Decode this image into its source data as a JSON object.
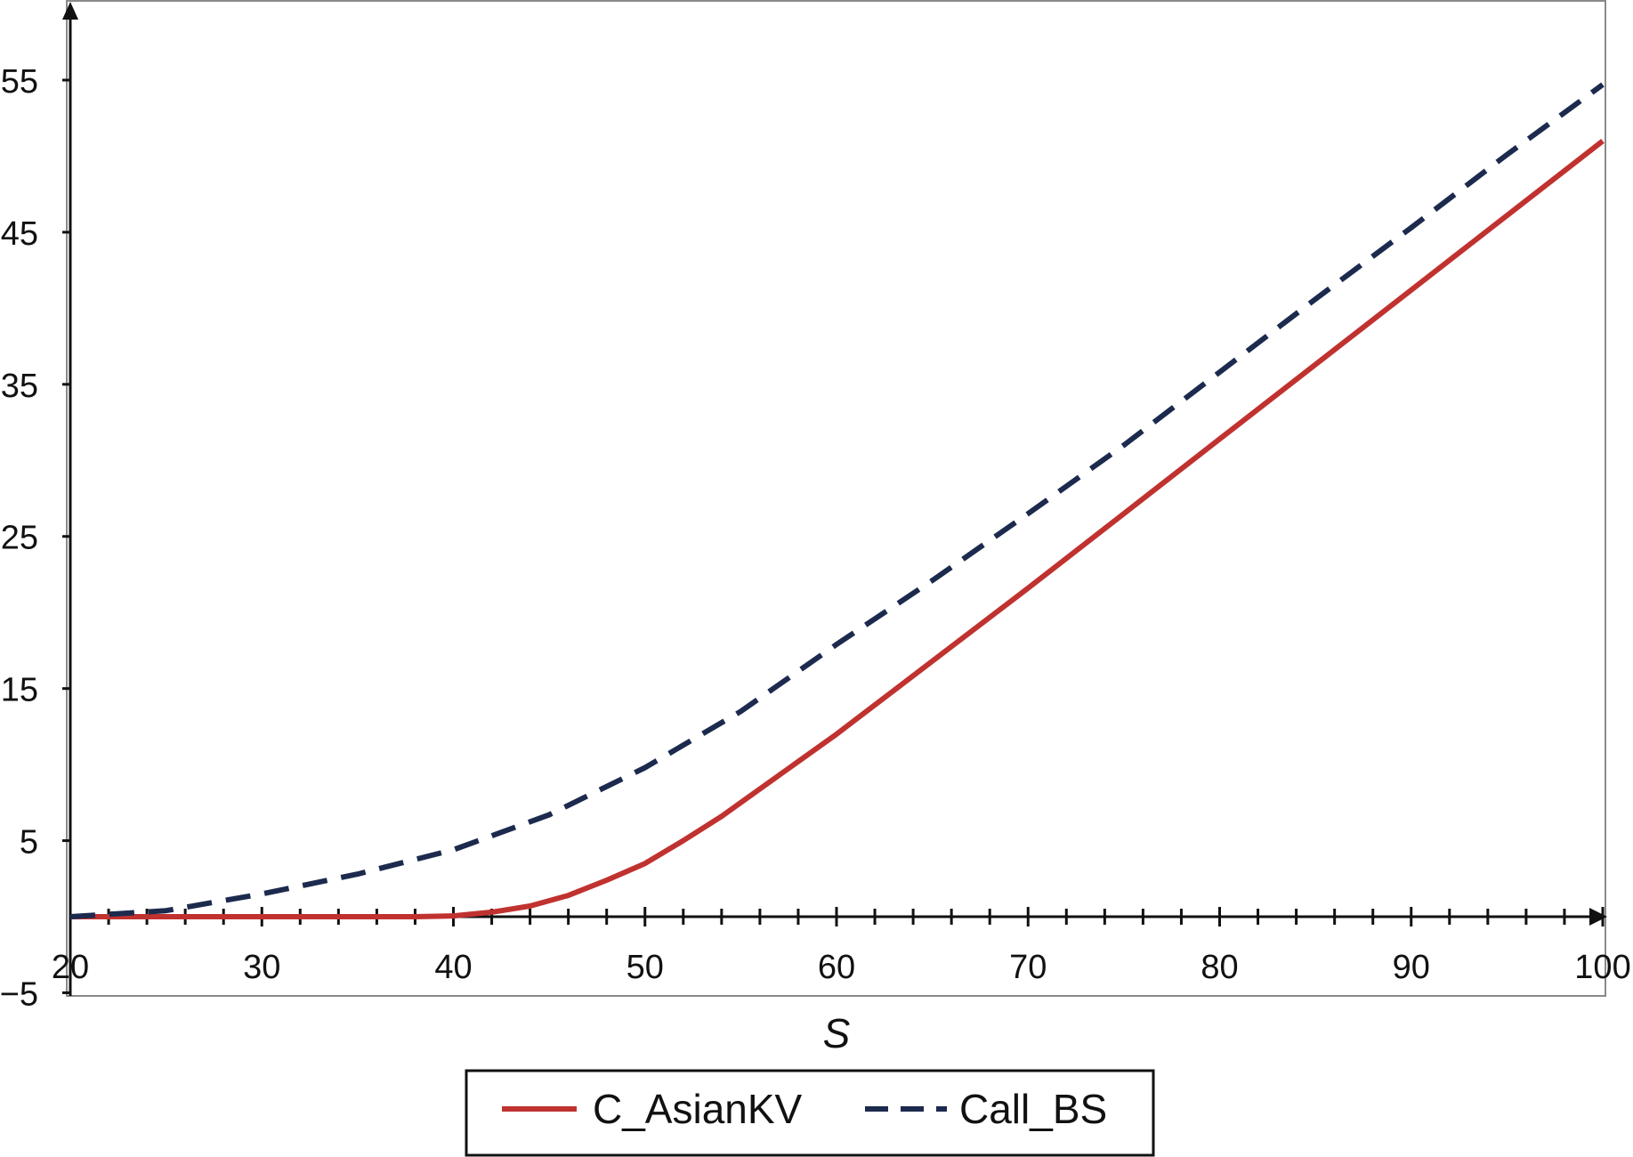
{
  "chart_data": {
    "type": "line",
    "xlabel": "S",
    "ylabel": "",
    "xlim": [
      20,
      100
    ],
    "ylim": [
      -5,
      60
    ],
    "x_major_ticks": [
      20,
      30,
      40,
      50,
      60,
      70,
      80,
      90,
      100
    ],
    "x_major_tick_labels": [
      "20",
      "30",
      "40",
      "50",
      "60",
      "70",
      "80",
      "90",
      "100"
    ],
    "x_minor_step": 2,
    "y_ticks": [
      55,
      45,
      35,
      25,
      15,
      5,
      -5
    ],
    "y_tick_labels": [
      "55",
      "45",
      "35",
      "25",
      "15",
      "5",
      "−5"
    ],
    "grid": false,
    "legend_position": "bottom-center",
    "series": [
      {
        "name": "C_AsianKV",
        "color": "#c0322f",
        "style": "solid",
        "x": [
          20,
          25,
          30,
          35,
          38,
          40,
          42,
          44,
          46,
          48,
          50,
          52,
          54,
          56,
          58,
          60,
          65,
          70,
          75,
          80,
          85,
          90,
          95,
          100
        ],
        "y": [
          0,
          0,
          0,
          0,
          0,
          0.05,
          0.3,
          0.7,
          1.4,
          2.4,
          3.5,
          5.0,
          6.6,
          8.4,
          10.2,
          12.0,
          16.8,
          21.6,
          26.5,
          31.4,
          36.3,
          41.2,
          46.1,
          51.0
        ]
      },
      {
        "name": "Call_BS",
        "color": "#1c2a4e",
        "style": "dashed",
        "x": [
          20,
          25,
          30,
          35,
          40,
          45,
          50,
          55,
          60,
          65,
          70,
          75,
          80,
          85,
          90,
          95,
          100
        ],
        "y": [
          0,
          0.4,
          1.5,
          2.8,
          4.4,
          6.7,
          9.8,
          13.5,
          17.9,
          22.1,
          26.5,
          31.0,
          35.8,
          40.6,
          45.3,
          50.1,
          54.7
        ]
      }
    ]
  }
}
